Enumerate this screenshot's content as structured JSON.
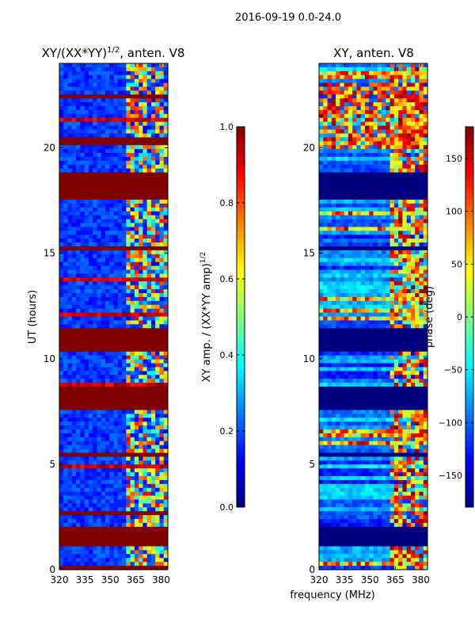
{
  "suptitle": "2016-09-19 0.0-24.0",
  "chart_data": [
    {
      "type": "heatmap",
      "title_main": "XY/(XX*YY)",
      "title_sup": "1/2",
      "title_suffix": ", anten. V8",
      "xlabel": "",
      "ylabel": "UT (hours)",
      "xlim": [
        320,
        384
      ],
      "ylim": [
        0,
        24
      ],
      "xticks": [
        320,
        335,
        350,
        365,
        380
      ],
      "yticks": [
        0,
        5,
        10,
        15,
        20
      ],
      "colorbar": {
        "label_main": "XY amp. / (XX*YY amp)",
        "label_sup": "1/2",
        "range": [
          0.0,
          1.0
        ],
        "ticks": [
          "0.0",
          "0.2",
          "0.4",
          "0.6",
          "0.8",
          "1.0"
        ],
        "colormap": "jet"
      },
      "flagged_bands_hours": [
        [
          0.0,
          0.25
        ],
        [
          1.05,
          1.95
        ],
        [
          2.6,
          2.7
        ],
        [
          5.3,
          5.55
        ],
        [
          7.55,
          8.7
        ],
        [
          10.3,
          11.5
        ],
        [
          15.05,
          15.35
        ],
        [
          17.6,
          18.8
        ],
        [
          20.2,
          20.4
        ],
        [
          22.3,
          22.45
        ]
      ]
    },
    {
      "type": "heatmap",
      "title_main": "XY, anten. V8",
      "xlabel": "frequency (MHz)",
      "ylabel": "",
      "xlim": [
        320,
        384
      ],
      "ylim": [
        0,
        24
      ],
      "xticks": [
        320,
        335,
        350,
        365,
        380
      ],
      "yticks": [
        0,
        5,
        10,
        15,
        20
      ],
      "colorbar": {
        "label_main": "phase (deg)",
        "range": [
          -180,
          180
        ],
        "ticks": [
          "−150",
          "−100",
          "−50",
          "0",
          "50",
          "100",
          "150"
        ],
        "colormap": "jet"
      },
      "flagged_bands_hours": [
        [
          1.05,
          1.95
        ],
        [
          5.3,
          5.55
        ],
        [
          7.55,
          8.7
        ],
        [
          10.3,
          11.5
        ],
        [
          15.05,
          15.35
        ],
        [
          17.6,
          18.8
        ]
      ]
    }
  ]
}
